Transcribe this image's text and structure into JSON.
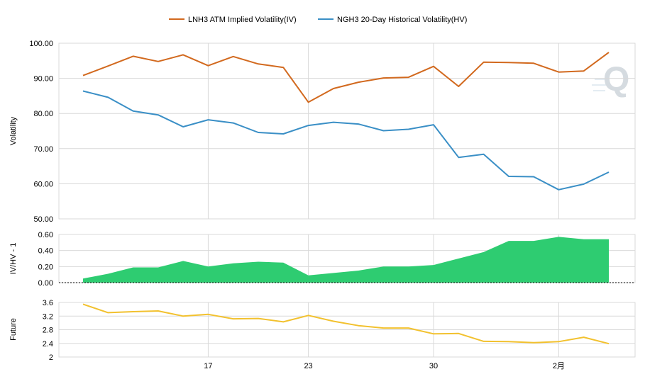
{
  "legend": {
    "iv_label": "LNH3 ATM Implied Volatility(IV)",
    "hv_label": "NGH3 20-Day Historical Volatility(HV)"
  },
  "watermark": "Q",
  "colors": {
    "iv": "#D2691E",
    "hv": "#3A8FC6",
    "ratio_fill": "#2ECC71",
    "future": "#F2C12E",
    "grid": "#D9D9D9",
    "axis_text": "#000000"
  },
  "chart_data": [
    {
      "type": "line",
      "ylabel": "Volatility",
      "ylim": [
        50,
        100
      ],
      "y_ticks": [
        "50.00",
        "60.00",
        "70.00",
        "80.00",
        "90.00",
        "100.00"
      ],
      "series": [
        {
          "name": "LNH3 ATM Implied Volatility(IV)",
          "values": [
            90.8,
            93.5,
            96.3,
            94.8,
            96.7,
            93.6,
            96.2,
            94.1,
            93.1,
            83.2,
            87.1,
            88.9,
            90.1,
            90.3,
            93.4,
            87.7,
            94.6,
            94.5,
            94.3,
            91.8,
            92.1,
            97.4
          ]
        },
        {
          "name": "NGH3 20-Day Historical Volatility(HV)",
          "values": [
            86.4,
            84.6,
            80.7,
            79.6,
            76.2,
            78.2,
            77.3,
            74.6,
            74.2,
            76.6,
            77.5,
            77.0,
            75.1,
            75.5,
            76.8,
            67.5,
            68.4,
            62.1,
            62.0,
            58.3,
            59.9,
            63.3
          ]
        }
      ]
    },
    {
      "type": "area",
      "ylabel": "IV/HV - 1",
      "ylim": [
        0,
        0.6
      ],
      "y_ticks": [
        "0.00",
        "0.20",
        "0.40",
        "0.60"
      ],
      "series": [
        {
          "values": [
            0.05,
            0.11,
            0.19,
            0.19,
            0.27,
            0.2,
            0.24,
            0.26,
            0.25,
            0.09,
            0.12,
            0.15,
            0.2,
            0.2,
            0.22,
            0.3,
            0.38,
            0.52,
            0.52,
            0.57,
            0.54,
            0.54
          ]
        }
      ]
    },
    {
      "type": "line",
      "ylabel": "Future",
      "ylim": [
        2,
        3.6
      ],
      "y_ticks": [
        "2",
        "2.4",
        "2.8",
        "3.2",
        "3.6"
      ],
      "series": [
        {
          "values": [
            3.55,
            3.3,
            3.33,
            3.35,
            3.2,
            3.25,
            3.12,
            3.13,
            3.03,
            3.22,
            3.05,
            2.92,
            2.85,
            2.85,
            2.68,
            2.69,
            2.46,
            2.45,
            2.42,
            2.45,
            2.58,
            2.39
          ]
        }
      ]
    }
  ],
  "x_axis": {
    "points": 22,
    "ticks": [
      {
        "index": 5,
        "label": "17"
      },
      {
        "index": 9,
        "label": "23"
      },
      {
        "index": 14,
        "label": "30"
      },
      {
        "index": 19,
        "label": "2月"
      }
    ]
  }
}
